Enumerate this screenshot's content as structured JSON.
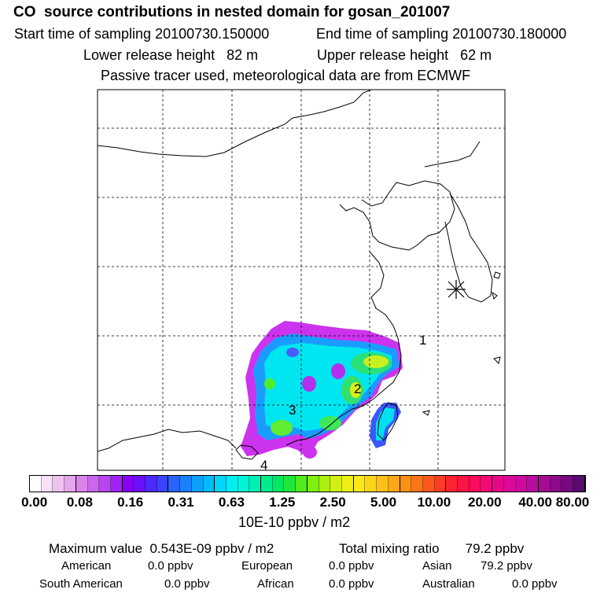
{
  "title": "CO  source contributions in nested domain for gosan_201007",
  "sampling": {
    "start": "Start time of sampling 20100730.150000",
    "end": "End time of sampling 20100730.180000"
  },
  "release": {
    "lower": "Lower release height   82 m",
    "upper": "Upper release height   62 m"
  },
  "tracer_note": "Passive tracer used, meteorological data are from ECMWF",
  "region_labels": [
    "1",
    "2",
    "3",
    "4"
  ],
  "colorbar": {
    "ticks": [
      "0.00",
      "0.08",
      "0.16",
      "0.31",
      "0.63",
      "1.25",
      "2.50",
      "5.00",
      "10.00",
      "20.00",
      "40.00",
      "80.00"
    ],
    "unit": "10E-10 ppbv / m2",
    "colors": [
      "#ffffff",
      "#f8e0f8",
      "#efc2f0",
      "#e6a6ee",
      "#da84ea",
      "#cc66ee",
      "#b844f2",
      "#a022f4",
      "#8800f6",
      "#6a10fa",
      "#4a2cfa",
      "#3a44fc",
      "#2a62fc",
      "#1a80fc",
      "#0aa0fc",
      "#00bcfc",
      "#00d6f8",
      "#00eef0",
      "#00f4d8",
      "#00f0b4",
      "#00ec8c",
      "#00e860",
      "#20e83a",
      "#50ec1e",
      "#80f010",
      "#acf010",
      "#d0f010",
      "#eef014",
      "#fce81a",
      "#fcd41a",
      "#fcc018",
      "#fca816",
      "#fc9016",
      "#fc7418",
      "#fc581c",
      "#fc3c22",
      "#fc2430",
      "#fc1444",
      "#fc0c5c",
      "#f40874",
      "#e80688",
      "#dc0898",
      "#cc0aa0",
      "#b80c9c",
      "#a40c94",
      "#8e0a8a",
      "#760a7e",
      "#5a0a6a"
    ]
  },
  "stats": {
    "max_value": "Maximum value  0.543E-09 ppbv / m2",
    "total_mixing": "Total mixing ratio       79.2 ppbv",
    "american": {
      "label": "American",
      "value": "0.0 ppbv"
    },
    "european": {
      "label": "European",
      "value": "0.0 ppbv"
    },
    "asian": {
      "label": "Asian",
      "value": "79.2 ppbv"
    },
    "south_american": {
      "label": "South American",
      "value": "0.0 ppbv"
    },
    "african": {
      "label": "African",
      "value": "0.0 ppbv"
    },
    "australian": {
      "label": "Australian",
      "value": "0.0 ppbv"
    }
  }
}
